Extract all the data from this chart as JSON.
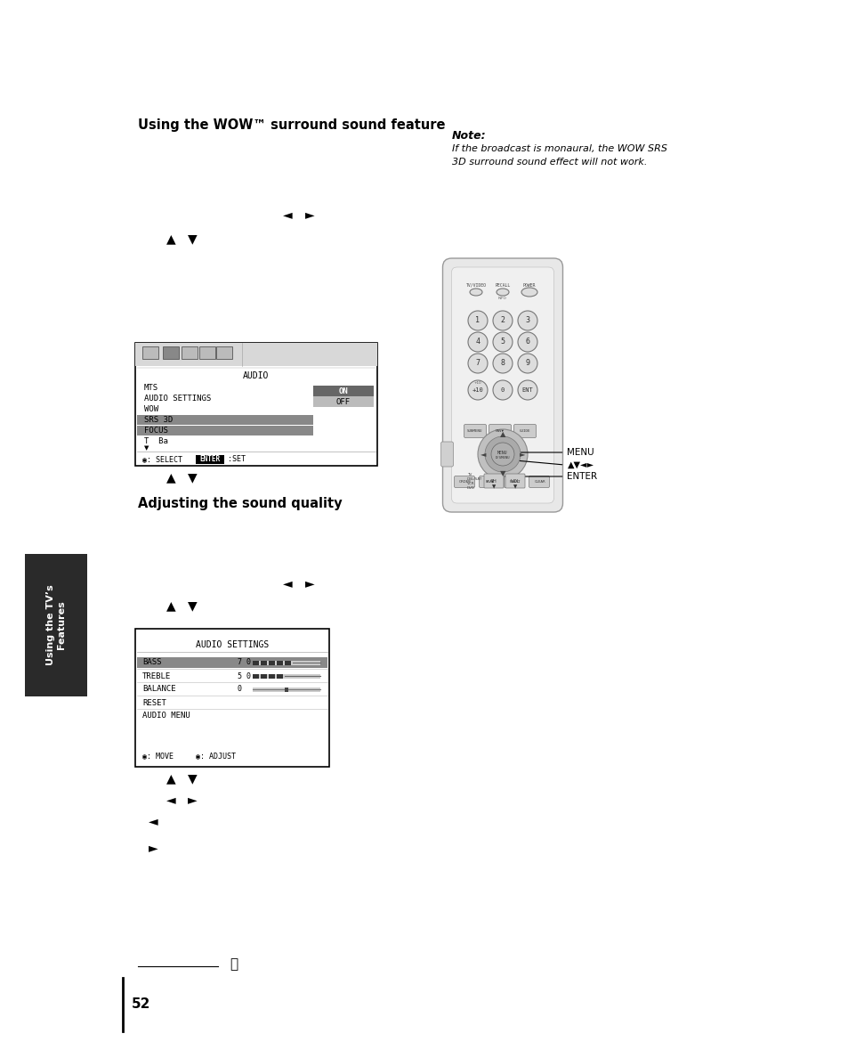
{
  "bg_color": "#ffffff",
  "title1": "Using the WOW™ surround sound feature",
  "note_title": "Note:",
  "note_text": "If the broadcast is monaural, the WOW SRS\n3D surround sound effect will not work.",
  "title2": "Adjusting the sound quality",
  "sidebar_text": "Using the TV’s\nFeatures",
  "sidebar_bg": "#2a2a2a",
  "page_number": "52",
  "menu_label": "MENU",
  "enter_label": "ENTER",
  "audio_menu_title": "AUDIO",
  "audio_menu_items": [
    "MTS",
    "AUDIO SETTINGS",
    "WOW",
    "SRS 3D",
    "FOCUS",
    "T  Ba"
  ],
  "audio_menu_on_off": [
    "ON",
    "OFF"
  ],
  "audio_settings_title": "AUDIO SETTINGS",
  "audio_settings_items": [
    "BASS",
    "TREBLE",
    "BALANCE",
    "RESET",
    "AUDIO MENU"
  ],
  "audio_settings_values": [
    "7 0",
    "5 0",
    "0",
    "",
    ""
  ],
  "arrow_lr": [
    "◄",
    "►"
  ],
  "arrow_ud": [
    "▲",
    "▼"
  ]
}
